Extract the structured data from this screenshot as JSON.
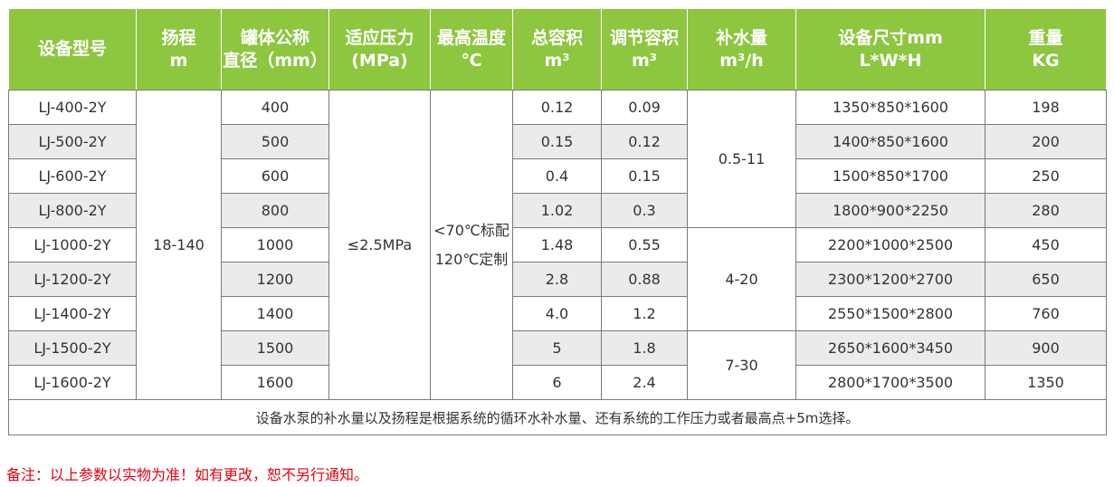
{
  "table": {
    "headers": [
      {
        "line1": "设备型号",
        "line2": ""
      },
      {
        "line1": "扬程",
        "line2": "m"
      },
      {
        "line1": "罐体公称",
        "line2": "直径（mm）"
      },
      {
        "line1": "适应压力",
        "line2": "(MPa)"
      },
      {
        "line1": "最高温度",
        "line2": "℃"
      },
      {
        "line1": "总容积",
        "line2": "m³"
      },
      {
        "line1": "调节容积",
        "line2": "m³"
      },
      {
        "line1": "补水量",
        "line2": "m³/h"
      },
      {
        "line1": "设备尺寸mm",
        "line2": "L*W*H"
      },
      {
        "line1": "重量",
        "line2": "KG"
      }
    ],
    "rows": [
      {
        "model": "LJ-400-2Y",
        "diameter": "400",
        "total": "0.12",
        "adjust": "0.09",
        "size": "1350*850*1600",
        "weight": "198"
      },
      {
        "model": "LJ-500-2Y",
        "diameter": "500",
        "total": "0.15",
        "adjust": "0.12",
        "size": "1400*850*1600",
        "weight": "200"
      },
      {
        "model": "LJ-600-2Y",
        "diameter": "600",
        "total": "0.4",
        "adjust": "0.15",
        "size": "1500*850*1700",
        "weight": "250"
      },
      {
        "model": "LJ-800-2Y",
        "diameter": "800",
        "total": "1.02",
        "adjust": "0.3",
        "size": "1800*900*2250",
        "weight": "280"
      },
      {
        "model": "LJ-1000-2Y",
        "diameter": "1000",
        "total": "1.48",
        "adjust": "0.55",
        "size": "2200*1000*2500",
        "weight": "450"
      },
      {
        "model": "LJ-1200-2Y",
        "diameter": "1200",
        "total": "2.8",
        "adjust": "0.88",
        "size": "2300*1200*2700",
        "weight": "650"
      },
      {
        "model": "LJ-1400-2Y",
        "diameter": "1400",
        "total": "4.0",
        "adjust": "1.2",
        "size": "2550*1500*2800",
        "weight": "760"
      },
      {
        "model": "LJ-1500-2Y",
        "diameter": "1500",
        "total": "5",
        "adjust": "1.8",
        "size": "2650*1600*3450",
        "weight": "900"
      },
      {
        "model": "LJ-1600-2Y",
        "diameter": "1600",
        "total": "6",
        "adjust": "2.4",
        "size": "2800*1700*3500",
        "weight": "1350"
      }
    ],
    "head": "18-140",
    "pressure": "≤2.5MPa",
    "temp_line1": "<70℃标配",
    "temp_line2": "120℃定制",
    "water_supply": [
      "0.5-11",
      "4-20",
      "7-30"
    ],
    "footnote": "设备水泵的补水量以及扬程是根据系统的循环水补水量、还有系统的工作压力或者最高点+5m选择。"
  },
  "remark": "备注：以上参数以实物为准！如有更改，恕不另行通知。",
  "colors": {
    "header_bg": "#8dc63f",
    "stripe": "#ebebeb",
    "remark": "#e60012"
  }
}
